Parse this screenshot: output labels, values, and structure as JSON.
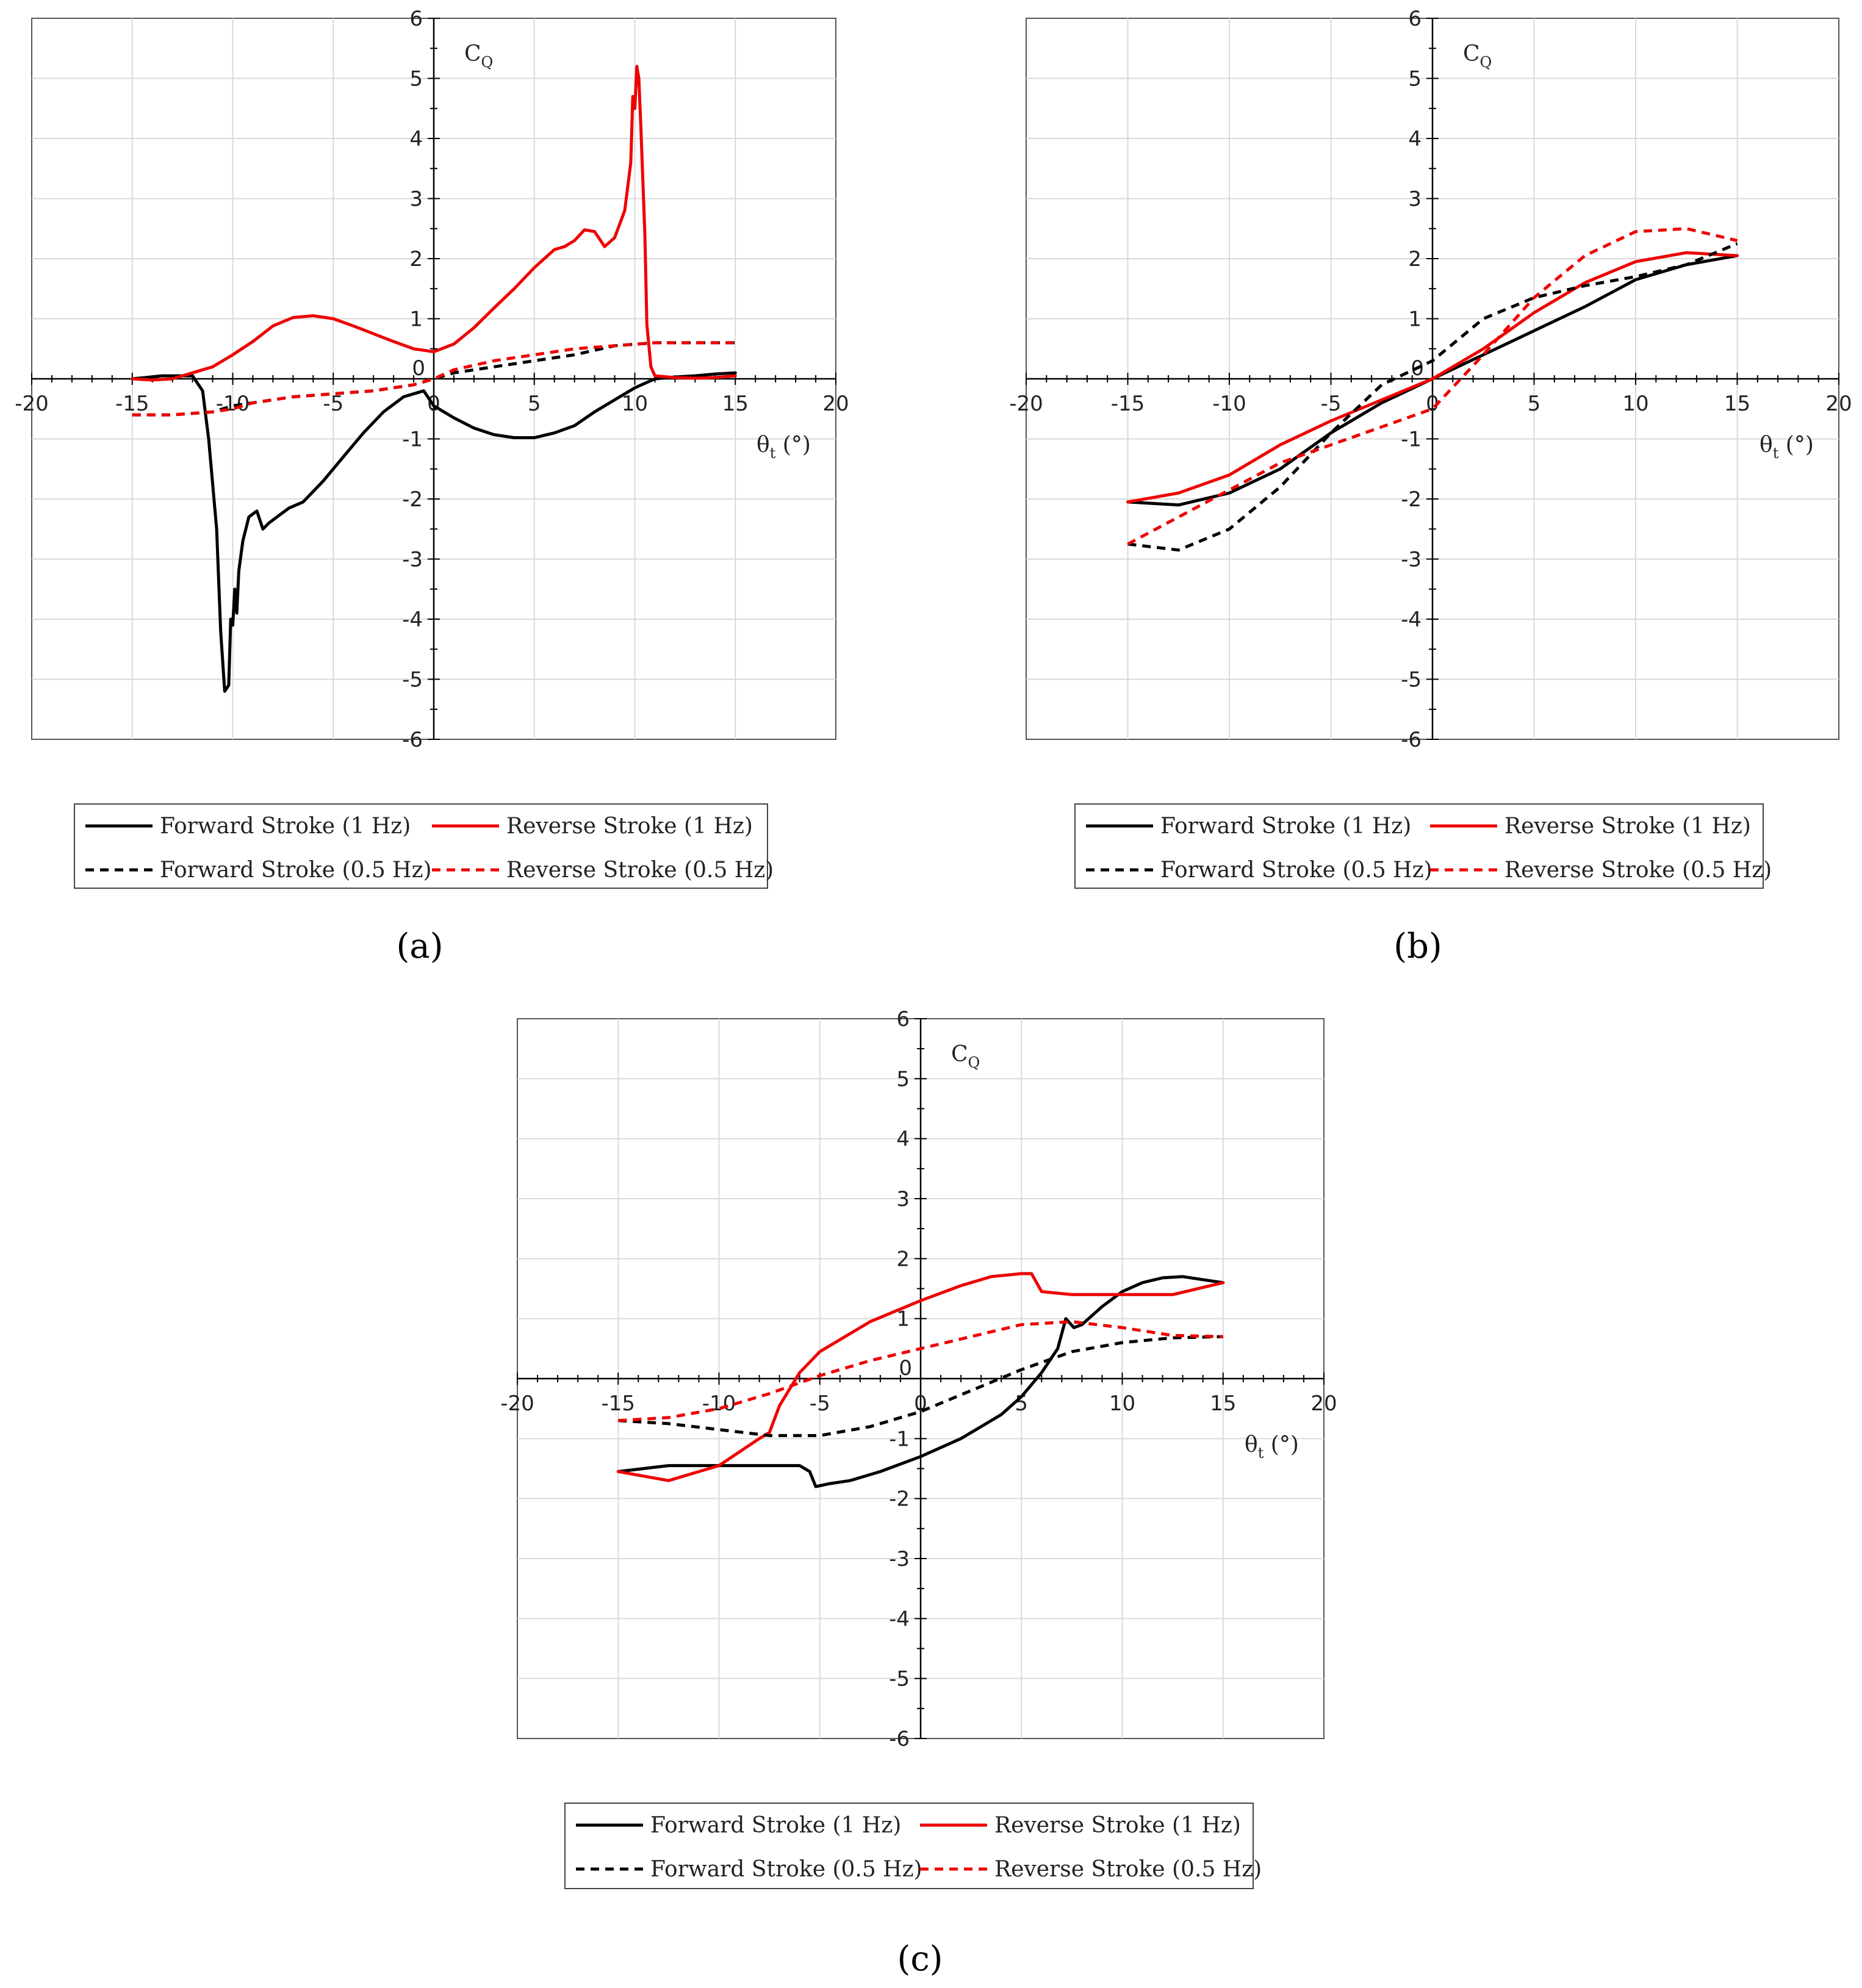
{
  "colors": {
    "forward": "#000000",
    "reverse": "#ee0000",
    "grid": "#d9d9d9",
    "axis": "#000000"
  },
  "legend_entries": [
    {
      "label": "Forward Stroke (1 Hz)",
      "color": "#000000",
      "dash": false
    },
    {
      "label": "Reverse Stroke (1 Hz)",
      "color": "#ee0000",
      "dash": false
    },
    {
      "label": "Forward Stroke (0.5 Hz)",
      "color": "#000000",
      "dash": true
    },
    {
      "label": "Reverse Stroke (0.5 Hz)",
      "color": "#ee0000",
      "dash": true
    }
  ],
  "chart_data": [
    {
      "id": "a",
      "panel_label": "(a)",
      "type": "line",
      "ylabel": "CQ",
      "ylabel_main": "C",
      "ylabel_sub": "Q",
      "xlabel": "θt (°)",
      "xlabel_main": "θ",
      "xlabel_sub": "t",
      "xlabel_unit": " (°)",
      "xlim": [
        -20,
        20
      ],
      "ylim": [
        -6,
        6
      ],
      "xticks": [
        -20,
        -15,
        -10,
        -5,
        0,
        5,
        10,
        15,
        20
      ],
      "yticks": [
        -6,
        -5,
        -4,
        -3,
        -2,
        -1,
        0,
        1,
        2,
        3,
        4,
        5,
        6
      ],
      "legend_position": "bottom",
      "series": [
        {
          "name": "Forward Stroke (1 Hz)",
          "color": "#000000",
          "dash": false,
          "x": [
            -15,
            -13.5,
            -12,
            -11.5,
            -11.2,
            -10.8,
            -10.6,
            -10.4,
            -10.2,
            -10.1,
            -10.0,
            -9.9,
            -9.8,
            -9.7,
            -9.5,
            -9.2,
            -8.8,
            -8.5,
            -8.2,
            -7.8,
            -7.2,
            -6.5,
            -5.5,
            -4.5,
            -3.5,
            -2.5,
            -1.5,
            -0.5,
            0,
            1,
            2,
            3,
            4,
            5,
            6,
            7,
            8,
            9,
            10,
            11,
            12,
            13,
            14,
            15
          ],
          "y": [
            0,
            0.05,
            0.05,
            -0.2,
            -1.0,
            -2.5,
            -4.2,
            -5.2,
            -5.1,
            -4.0,
            -4.1,
            -3.5,
            -3.9,
            -3.2,
            -2.7,
            -2.3,
            -2.2,
            -2.5,
            -2.4,
            -2.3,
            -2.15,
            -2.05,
            -1.7,
            -1.3,
            -0.9,
            -0.55,
            -0.3,
            -0.2,
            -0.45,
            -0.65,
            -0.82,
            -0.93,
            -0.98,
            -0.98,
            -0.9,
            -0.78,
            -0.55,
            -0.35,
            -0.15,
            0.0,
            0.03,
            0.05,
            0.08,
            0.1
          ]
        },
        {
          "name": "Reverse Stroke (1 Hz)",
          "color": "#ee0000",
          "dash": false,
          "x": [
            -15,
            -14,
            -13,
            -12,
            -11,
            -10,
            -9,
            -8,
            -7,
            -6,
            -5,
            -4,
            -3,
            -2,
            -1,
            0,
            1,
            2,
            3,
            4,
            5,
            6,
            6.5,
            7,
            7.5,
            8,
            8.5,
            9,
            9.5,
            9.8,
            9.9,
            10.0,
            10.1,
            10.2,
            10.3,
            10.4,
            10.5,
            10.6,
            10.8,
            11,
            12,
            13,
            14,
            15
          ],
          "y": [
            0,
            -0.02,
            0.0,
            0.1,
            0.2,
            0.4,
            0.62,
            0.88,
            1.02,
            1.05,
            1.0,
            0.88,
            0.75,
            0.62,
            0.5,
            0.45,
            0.58,
            0.85,
            1.18,
            1.5,
            1.85,
            2.15,
            2.2,
            2.3,
            2.48,
            2.45,
            2.2,
            2.35,
            2.8,
            3.6,
            4.7,
            4.5,
            5.2,
            5.0,
            4.2,
            3.3,
            2.4,
            0.9,
            0.2,
            0.05,
            0.02,
            0.01,
            0.02,
            0.05
          ]
        },
        {
          "name": "Forward Stroke (0.5 Hz)",
          "color": "#000000",
          "dash": true,
          "x": [
            -15,
            -13,
            -11,
            -10,
            -9,
            -7,
            -5,
            -3,
            -1,
            0,
            1,
            3,
            5,
            7,
            9,
            11,
            13,
            15
          ],
          "y": [
            -0.6,
            -0.6,
            -0.55,
            -0.45,
            -0.4,
            -0.3,
            -0.25,
            -0.2,
            -0.1,
            0,
            0.1,
            0.2,
            0.3,
            0.4,
            0.55,
            0.6,
            0.6,
            0.6
          ]
        },
        {
          "name": "Reverse Stroke (0.5 Hz)",
          "color": "#ee0000",
          "dash": true,
          "x": [
            -15,
            -13,
            -11,
            -10,
            -9,
            -7,
            -5,
            -3,
            -1,
            0,
            1,
            3,
            5,
            7,
            9,
            11,
            13,
            15
          ],
          "y": [
            -0.6,
            -0.6,
            -0.55,
            -0.5,
            -0.4,
            -0.3,
            -0.25,
            -0.2,
            -0.1,
            0,
            0.15,
            0.3,
            0.4,
            0.5,
            0.55,
            0.6,
            0.6,
            0.6
          ]
        }
      ]
    },
    {
      "id": "b",
      "panel_label": "(b)",
      "type": "line",
      "ylabel": "CQ",
      "ylabel_main": "C",
      "ylabel_sub": "Q",
      "xlabel": "θt (°)",
      "xlabel_main": "θ",
      "xlabel_sub": "t",
      "xlabel_unit": " (°)",
      "xlim": [
        -20,
        20
      ],
      "ylim": [
        -6,
        6
      ],
      "xticks": [
        -20,
        -15,
        -10,
        -5,
        0,
        5,
        10,
        15,
        20
      ],
      "yticks": [
        -6,
        -5,
        -4,
        -3,
        -2,
        -1,
        0,
        1,
        2,
        3,
        4,
        5,
        6
      ],
      "legend_position": "bottom",
      "series": [
        {
          "name": "Forward Stroke (1 Hz)",
          "color": "#000000",
          "dash": false,
          "x": [
            -15,
            -12.5,
            -10,
            -7.5,
            -5,
            -2.5,
            0,
            2.5,
            5,
            7.5,
            10,
            12.5,
            15
          ],
          "y": [
            -2.05,
            -2.1,
            -1.9,
            -1.5,
            -0.9,
            -0.4,
            0,
            0.4,
            0.8,
            1.2,
            1.65,
            1.9,
            2.05
          ]
        },
        {
          "name": "Reverse Stroke (1 Hz)",
          "color": "#ee0000",
          "dash": false,
          "x": [
            -15,
            -12.5,
            -10,
            -7.5,
            -5,
            -2.5,
            0,
            2.5,
            5,
            7.5,
            10,
            12.5,
            15
          ],
          "y": [
            -2.05,
            -1.9,
            -1.6,
            -1.1,
            -0.7,
            -0.35,
            0,
            0.5,
            1.1,
            1.6,
            1.95,
            2.1,
            2.05
          ]
        },
        {
          "name": "Forward Stroke (0.5 Hz)",
          "color": "#000000",
          "dash": true,
          "x": [
            -15,
            -12.5,
            -10,
            -7.5,
            -5,
            -2.5,
            0,
            2.5,
            5,
            7.5,
            10,
            12.5,
            15
          ],
          "y": [
            -2.75,
            -2.85,
            -2.5,
            -1.8,
            -0.9,
            -0.1,
            0.3,
            1.0,
            1.35,
            1.55,
            1.7,
            1.9,
            2.25
          ]
        },
        {
          "name": "Reverse Stroke (0.5 Hz)",
          "color": "#ee0000",
          "dash": true,
          "x": [
            -15,
            -12.5,
            -10,
            -7.5,
            -5,
            -2.5,
            0,
            2.5,
            5,
            7.5,
            10,
            12.5,
            15
          ],
          "y": [
            -2.75,
            -2.3,
            -1.85,
            -1.4,
            -1.1,
            -0.8,
            -0.5,
            0.4,
            1.35,
            2.05,
            2.45,
            2.5,
            2.3
          ]
        }
      ]
    },
    {
      "id": "c",
      "panel_label": "(c)",
      "type": "line",
      "ylabel": "CQ",
      "ylabel_main": "C",
      "ylabel_sub": "Q",
      "xlabel": "θt (°)",
      "xlabel_main": "θ",
      "xlabel_sub": "t",
      "xlabel_unit": " (°)",
      "xlim": [
        -20,
        20
      ],
      "ylim": [
        -6,
        6
      ],
      "xticks": [
        -20,
        -15,
        -10,
        -5,
        0,
        5,
        10,
        15,
        20
      ],
      "yticks": [
        -6,
        -5,
        -4,
        -3,
        -2,
        -1,
        0,
        1,
        2,
        3,
        4,
        5,
        6
      ],
      "legend_position": "bottom",
      "series": [
        {
          "name": "Forward Stroke (1 Hz)",
          "color": "#000000",
          "dash": false,
          "x": [
            -15,
            -12.5,
            -10,
            -7.5,
            -6,
            -5.5,
            -5.2,
            -4.5,
            -3.5,
            -2,
            0,
            2,
            4,
            5,
            6,
            6.8,
            7.2,
            7.6,
            8,
            9,
            10,
            11,
            12,
            13,
            14,
            15
          ],
          "y": [
            -1.55,
            -1.45,
            -1.45,
            -1.45,
            -1.45,
            -1.55,
            -1.8,
            -1.75,
            -1.7,
            -1.55,
            -1.3,
            -1.0,
            -0.6,
            -0.3,
            0.1,
            0.5,
            1.0,
            0.85,
            0.9,
            1.2,
            1.45,
            1.6,
            1.68,
            1.7,
            1.65,
            1.6
          ]
        },
        {
          "name": "Reverse Stroke (1 Hz)",
          "color": "#ee0000",
          "dash": false,
          "x": [
            -15,
            -12.5,
            -10,
            -8,
            -7.5,
            -7,
            -6,
            -5,
            -2.5,
            0,
            2,
            3.5,
            5,
            5.5,
            6,
            7.5,
            10,
            12.5,
            15
          ],
          "y": [
            -1.55,
            -1.7,
            -1.45,
            -1.0,
            -0.9,
            -0.45,
            0.1,
            0.45,
            0.95,
            1.3,
            1.55,
            1.7,
            1.75,
            1.75,
            1.45,
            1.4,
            1.4,
            1.4,
            1.6
          ]
        },
        {
          "name": "Forward Stroke (0.5 Hz)",
          "color": "#000000",
          "dash": true,
          "x": [
            -15,
            -12.5,
            -10,
            -7.5,
            -5,
            -2.5,
            0,
            2.5,
            5,
            7.5,
            10,
            12.5,
            15
          ],
          "y": [
            -0.7,
            -0.75,
            -0.85,
            -0.95,
            -0.95,
            -0.8,
            -0.55,
            -0.2,
            0.15,
            0.45,
            0.6,
            0.68,
            0.7
          ]
        },
        {
          "name": "Reverse Stroke (0.5 Hz)",
          "color": "#ee0000",
          "dash": true,
          "x": [
            -15,
            -12.5,
            -10,
            -7.5,
            -5,
            -2.5,
            0,
            2.5,
            5,
            7.5,
            10,
            12.5,
            15
          ],
          "y": [
            -0.7,
            -0.65,
            -0.5,
            -0.25,
            0.05,
            0.3,
            0.5,
            0.7,
            0.9,
            0.95,
            0.85,
            0.72,
            0.7
          ]
        }
      ]
    }
  ]
}
